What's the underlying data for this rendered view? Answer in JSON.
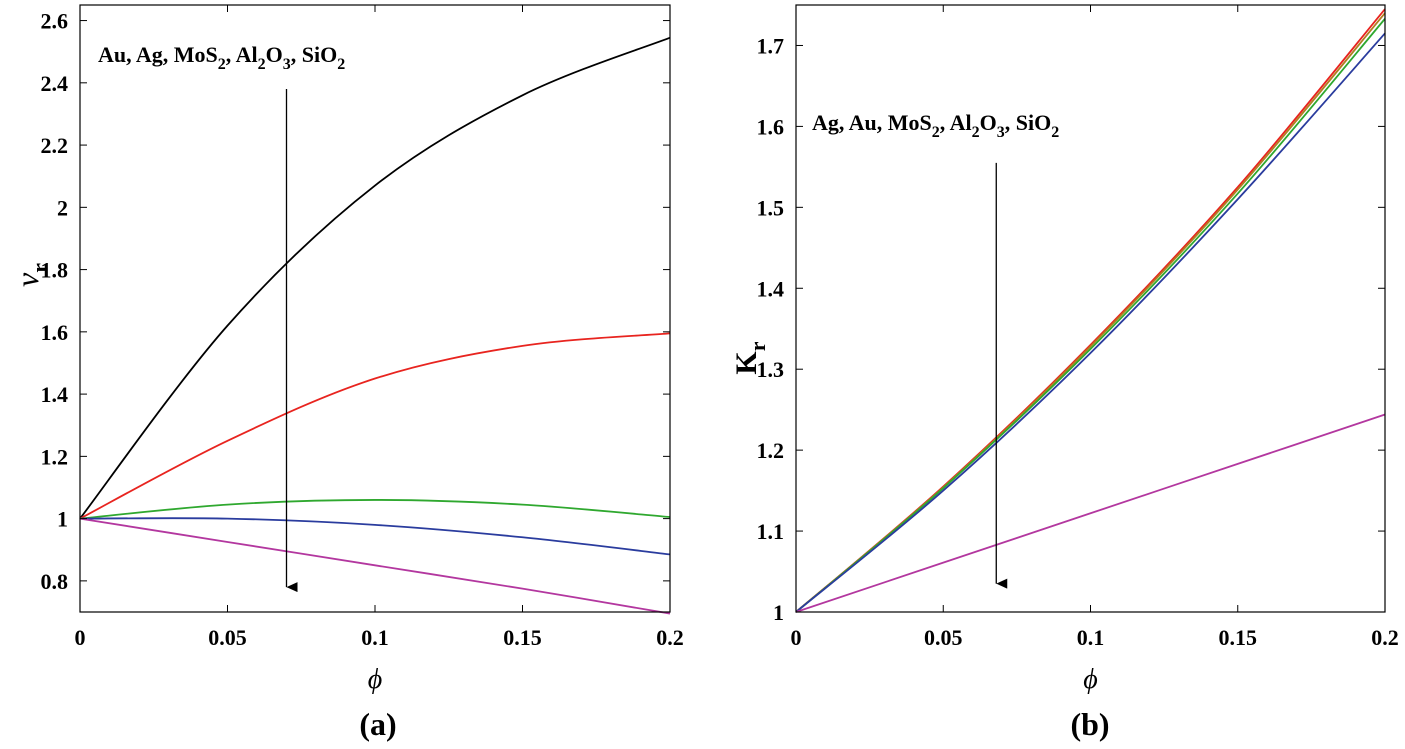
{
  "chart_data": [
    {
      "type": "line",
      "panel_label": "(a)",
      "xlabel": "ϕ",
      "ylabel": "ν",
      "ylabel_sub": "r",
      "xlim": [
        0,
        0.2
      ],
      "ylim": [
        0.7,
        2.65
      ],
      "xticks": [
        0,
        0.05,
        0.1,
        0.15,
        0.2
      ],
      "xtick_labels": [
        "0",
        "0.05",
        "0.1",
        "0.15",
        "0.2"
      ],
      "yticks": [
        0.8,
        1.0,
        1.2,
        1.4,
        1.6,
        1.8,
        2.0,
        2.2,
        2.4,
        2.6
      ],
      "ytick_labels": [
        "0.8",
        "1",
        "1.2",
        "1.4",
        "1.6",
        "1.8",
        "2",
        "2.2",
        "2.4",
        "2.6"
      ],
      "annotation": {
        "parts": [
          {
            "text": "Au, Ag, MoS"
          },
          {
            "text": "2",
            "sub": true
          },
          {
            "text": ", Al"
          },
          {
            "text": "2",
            "sub": true
          },
          {
            "text": "O"
          },
          {
            "text": "3",
            "sub": true
          },
          {
            "text": ", SiO"
          },
          {
            "text": "2",
            "sub": true
          }
        ],
        "arrow": {
          "x": 0.07,
          "y_from": 2.38,
          "y_to": 0.78
        }
      },
      "series": [
        {
          "name": "Au",
          "color": "#000000",
          "x": [
            0,
            0.05,
            0.1,
            0.15,
            0.2
          ],
          "y": [
            1.0,
            1.62,
            2.07,
            2.36,
            2.545
          ]
        },
        {
          "name": "Ag",
          "color": "#e8241f",
          "x": [
            0,
            0.05,
            0.1,
            0.15,
            0.2
          ],
          "y": [
            1.0,
            1.25,
            1.45,
            1.555,
            1.595
          ]
        },
        {
          "name": "MoS2",
          "color": "#2fa82f",
          "x": [
            0,
            0.05,
            0.1,
            0.15,
            0.2
          ],
          "y": [
            1.0,
            1.045,
            1.06,
            1.045,
            1.005
          ]
        },
        {
          "name": "Al2O3",
          "color": "#2a3c9e",
          "x": [
            0,
            0.05,
            0.1,
            0.15,
            0.2
          ],
          "y": [
            1.0,
            1.0,
            0.98,
            0.94,
            0.885
          ]
        },
        {
          "name": "SiO2",
          "color": "#b3379f",
          "x": [
            0,
            0.05,
            0.1,
            0.15,
            0.2
          ],
          "y": [
            1.0,
            0.925,
            0.85,
            0.775,
            0.695
          ]
        }
      ]
    },
    {
      "type": "line",
      "panel_label": "(b)",
      "xlabel": "ϕ",
      "ylabel": "K",
      "ylabel_sub": "r",
      "xlim": [
        0,
        0.2
      ],
      "ylim": [
        1.0,
        1.75
      ],
      "xticks": [
        0,
        0.05,
        0.1,
        0.15,
        0.2
      ],
      "xtick_labels": [
        "0",
        "0.05",
        "0.1",
        "0.15",
        "0.2"
      ],
      "yticks": [
        1.0,
        1.1,
        1.2,
        1.3,
        1.4,
        1.5,
        1.6,
        1.7
      ],
      "ytick_labels": [
        "1",
        "1.1",
        "1.2",
        "1.3",
        "1.4",
        "1.5",
        "1.6",
        "1.7"
      ],
      "annotation": {
        "parts": [
          {
            "text": "Ag, Au, MoS"
          },
          {
            "text": "2",
            "sub": true
          },
          {
            "text": ", Al"
          },
          {
            "text": "2",
            "sub": true
          },
          {
            "text": "O"
          },
          {
            "text": "3",
            "sub": true
          },
          {
            "text": ", SiO"
          },
          {
            "text": "2",
            "sub": true
          }
        ],
        "arrow": {
          "x": 0.068,
          "y_from": 1.555,
          "y_to": 1.035
        }
      },
      "series": [
        {
          "name": "Ag",
          "color": "#e8241f",
          "x": [
            0,
            0.05,
            0.1,
            0.15,
            0.2
          ],
          "y": [
            1.0,
            1.155,
            1.33,
            1.525,
            1.745
          ]
        },
        {
          "name": "Au",
          "color": "#b07f20",
          "x": [
            0,
            0.05,
            0.1,
            0.15,
            0.2
          ],
          "y": [
            1.0,
            1.154,
            1.328,
            1.522,
            1.74
          ]
        },
        {
          "name": "MoS2",
          "color": "#2fa82f",
          "x": [
            0,
            0.05,
            0.1,
            0.15,
            0.2
          ],
          "y": [
            1.0,
            1.153,
            1.325,
            1.517,
            1.733
          ]
        },
        {
          "name": "Al2O3",
          "color": "#2a3c9e",
          "x": [
            0,
            0.05,
            0.1,
            0.15,
            0.2
          ],
          "y": [
            1.0,
            1.15,
            1.32,
            1.51,
            1.715
          ]
        },
        {
          "name": "SiO2",
          "color": "#b3379f",
          "x": [
            0,
            0.05,
            0.1,
            0.15,
            0.2
          ],
          "y": [
            1.0,
            1.061,
            1.122,
            1.183,
            1.244
          ]
        }
      ]
    }
  ]
}
